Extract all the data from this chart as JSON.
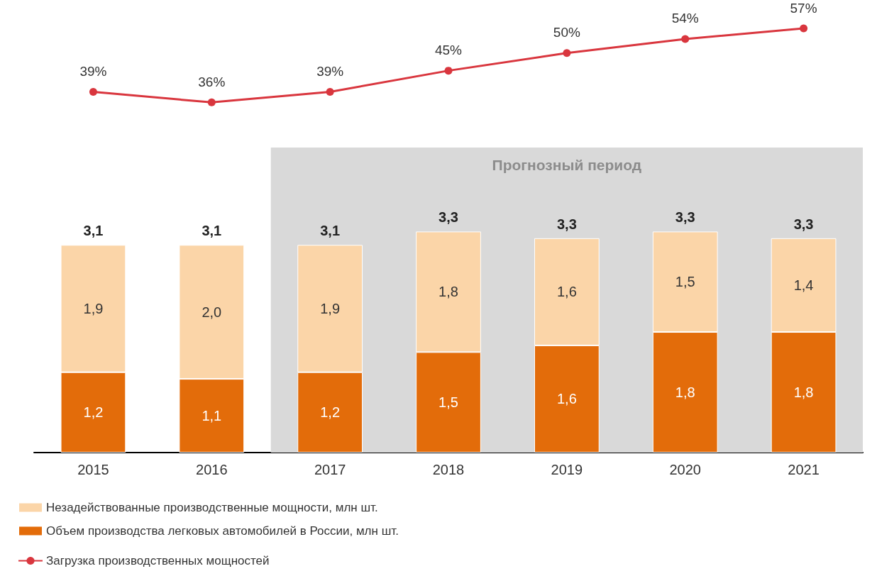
{
  "chart_data": [
    {
      "type": "line",
      "categories": [
        "2015",
        "2016",
        "2017",
        "2018",
        "2019",
        "2020",
        "2021"
      ],
      "series": [
        {
          "name": "Загрузка производственных мощностей",
          "color": "#d9363e",
          "values": [
            39,
            36,
            39,
            45,
            50,
            54,
            57
          ],
          "value_labels": [
            "39%",
            "36%",
            "39%",
            "45%",
            "50%",
            "54%",
            "57%"
          ]
        }
      ],
      "marker": "circle",
      "line_style": "solid",
      "legend": "bottom left",
      "tick_labels": false
    },
    {
      "type": "bar",
      "stacked": true,
      "categories": [
        "2015",
        "2016",
        "2017",
        "2018",
        "2019",
        "2020",
        "2021"
      ],
      "series": [
        {
          "name": "Объем производства легковых автомобилей в России, млн шт.",
          "color": "#e36c0a",
          "values": [
            1.2,
            1.1,
            1.2,
            1.5,
            1.6,
            1.8,
            1.8
          ],
          "value_labels": [
            "1,2",
            "1,1",
            "1,2",
            "1,5",
            "1,6",
            "1,8",
            "1,8"
          ]
        },
        {
          "name": "Незадействованные производственные мощности, млн шт.",
          "color": "#fbd5a8",
          "values": [
            1.9,
            2.0,
            1.9,
            1.8,
            1.6,
            1.5,
            1.4
          ],
          "value_labels": [
            "1,9",
            "2,0",
            "1,9",
            "1,8",
            "1,6",
            "1,5",
            "1,4"
          ]
        }
      ],
      "totals": [
        "3,1",
        "3,1",
        "3,1",
        "3,3",
        "3,3",
        "3,3",
        "3,3"
      ],
      "bands": [
        {
          "axis": "x",
          "from": "2017",
          "to": "2021",
          "label": "Прогнозный период",
          "color": "#d9d9d9"
        }
      ],
      "legend": "bottom left",
      "tick_labels": "x"
    }
  ]
}
